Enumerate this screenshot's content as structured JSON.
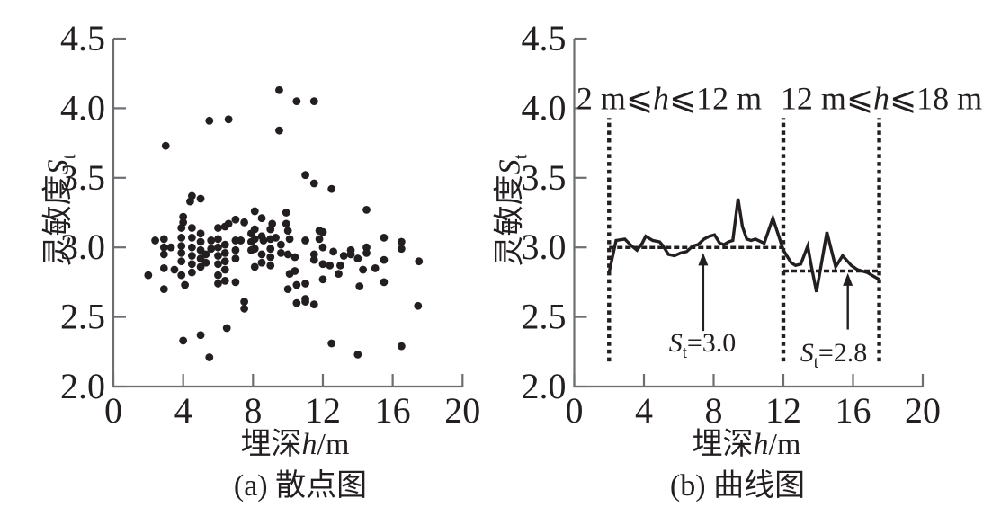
{
  "figure": {
    "background": "#ffffff",
    "ink": "#231f20",
    "axis_color": "#6d6e71"
  },
  "chart_data": [
    {
      "id": "scatter-panel",
      "type": "scatter",
      "title": "(a) 散点图",
      "xlabel": "埋深h/m",
      "ylabel": "灵敏度St",
      "xlabel_parts": [
        {
          "t": "埋深"
        },
        {
          "t": "h",
          "i": 1
        },
        {
          "t": "/m"
        }
      ],
      "ylabel_parts": [
        {
          "t": "灵敏度"
        },
        {
          "t": "S",
          "i": 1
        },
        {
          "t": "t",
          "sub": 1
        }
      ],
      "xlim": [
        0,
        20
      ],
      "ylim": [
        2.0,
        4.5
      ],
      "xticks": [
        0,
        4,
        8,
        12,
        16,
        20
      ],
      "yticks": [
        2.0,
        2.5,
        3.0,
        3.5,
        4.0,
        4.5
      ],
      "grid": false,
      "points": [
        [
          2.0,
          2.8
        ],
        [
          2.4,
          3.05
        ],
        [
          2.9,
          3.06
        ],
        [
          2.9,
          3.0
        ],
        [
          2.9,
          2.95
        ],
        [
          2.9,
          2.85
        ],
        [
          2.9,
          2.7
        ],
        [
          3.0,
          3.73
        ],
        [
          3.3,
          3.0
        ],
        [
          3.5,
          2.84
        ],
        [
          3.9,
          3.14
        ],
        [
          3.9,
          3.07
        ],
        [
          3.9,
          3.01
        ],
        [
          3.9,
          2.96
        ],
        [
          3.9,
          2.9
        ],
        [
          3.9,
          2.8
        ],
        [
          4.0,
          3.22
        ],
        [
          4.0,
          3.18
        ],
        [
          4.0,
          2.33
        ],
        [
          4.1,
          2.73
        ],
        [
          4.4,
          3.33
        ],
        [
          4.5,
          3.37
        ],
        [
          4.5,
          3.14
        ],
        [
          4.5,
          3.07
        ],
        [
          4.5,
          3.0
        ],
        [
          4.5,
          2.94
        ],
        [
          4.5,
          2.88
        ],
        [
          4.5,
          2.82
        ],
        [
          5.0,
          3.35
        ],
        [
          5.0,
          3.1
        ],
        [
          5.0,
          3.04
        ],
        [
          5.0,
          2.98
        ],
        [
          5.0,
          2.92
        ],
        [
          5.0,
          2.86
        ],
        [
          5.0,
          2.37
        ],
        [
          5.3,
          2.95
        ],
        [
          5.3,
          2.89
        ],
        [
          5.5,
          3.91
        ],
        [
          5.5,
          2.21
        ],
        [
          5.6,
          3.05
        ],
        [
          5.6,
          2.99
        ],
        [
          6.0,
          3.14
        ],
        [
          6.0,
          3.06
        ],
        [
          6.0,
          3.0
        ],
        [
          6.0,
          2.94
        ],
        [
          6.0,
          2.88
        ],
        [
          6.0,
          2.8
        ],
        [
          6.0,
          2.74
        ],
        [
          6.4,
          3.15
        ],
        [
          6.4,
          3.02
        ],
        [
          6.4,
          2.96
        ],
        [
          6.4,
          2.9
        ],
        [
          6.4,
          2.84
        ],
        [
          6.4,
          2.76
        ],
        [
          6.5,
          2.42
        ],
        [
          6.6,
          3.92
        ],
        [
          6.6,
          3.17
        ],
        [
          7.0,
          3.2
        ],
        [
          7.0,
          3.05
        ],
        [
          7.0,
          2.98
        ],
        [
          7.0,
          2.92
        ],
        [
          7.0,
          2.75
        ],
        [
          7.3,
          3.05
        ],
        [
          7.5,
          3.18
        ],
        [
          7.5,
          2.61
        ],
        [
          7.5,
          2.56
        ],
        [
          7.9,
          3.1
        ],
        [
          7.9,
          3.04
        ],
        [
          7.9,
          2.98
        ],
        [
          8.1,
          3.26
        ],
        [
          8.1,
          3.13
        ],
        [
          8.1,
          3.06
        ],
        [
          8.1,
          2.99
        ],
        [
          8.1,
          2.86
        ],
        [
          8.5,
          3.21
        ],
        [
          8.5,
          3.08
        ],
        [
          8.5,
          2.95
        ],
        [
          8.5,
          2.89
        ],
        [
          8.6,
          3.05
        ],
        [
          9.0,
          3.13
        ],
        [
          9.0,
          3.06
        ],
        [
          9.0,
          2.99
        ],
        [
          9.0,
          2.93
        ],
        [
          9.0,
          2.87
        ],
        [
          9.1,
          3.17
        ],
        [
          9.3,
          3.07
        ],
        [
          9.5,
          4.13
        ],
        [
          9.5,
          3.84
        ],
        [
          9.6,
          3.02
        ],
        [
          9.6,
          2.96
        ],
        [
          9.9,
          3.25
        ],
        [
          9.9,
          3.17
        ],
        [
          10.0,
          3.12
        ],
        [
          10.0,
          2.95
        ],
        [
          10.0,
          2.7
        ],
        [
          10.1,
          3.06
        ],
        [
          10.1,
          2.81
        ],
        [
          10.4,
          2.93
        ],
        [
          10.4,
          2.83
        ],
        [
          10.5,
          4.05
        ],
        [
          10.5,
          2.73
        ],
        [
          10.5,
          2.6
        ],
        [
          11.0,
          3.52
        ],
        [
          11.0,
          3.05
        ],
        [
          11.0,
          2.74
        ],
        [
          11.0,
          2.63
        ],
        [
          11.0,
          2.61
        ],
        [
          11.5,
          4.05
        ],
        [
          11.5,
          3.46
        ],
        [
          11.5,
          2.95
        ],
        [
          11.5,
          2.91
        ],
        [
          11.5,
          2.59
        ],
        [
          11.8,
          3.12
        ],
        [
          11.8,
          3.06
        ],
        [
          12.0,
          3.11
        ],
        [
          12.0,
          3.0
        ],
        [
          12.0,
          2.88
        ],
        [
          12.0,
          2.77
        ],
        [
          12.4,
          2.87
        ],
        [
          12.5,
          3.42
        ],
        [
          12.5,
          2.31
        ],
        [
          12.6,
          2.97
        ],
        [
          12.9,
          2.81
        ],
        [
          13.0,
          2.87
        ],
        [
          13.2,
          2.94
        ],
        [
          13.6,
          2.98
        ],
        [
          13.6,
          2.95
        ],
        [
          14.0,
          2.92
        ],
        [
          14.0,
          2.23
        ],
        [
          14.1,
          2.72
        ],
        [
          14.3,
          2.84
        ],
        [
          14.5,
          3.27
        ],
        [
          14.5,
          3.0
        ],
        [
          14.5,
          2.96
        ],
        [
          15.0,
          2.85
        ],
        [
          15.5,
          3.07
        ],
        [
          15.5,
          2.91
        ],
        [
          15.5,
          2.75
        ],
        [
          16.5,
          3.04
        ],
        [
          16.5,
          2.99
        ],
        [
          16.5,
          2.29
        ],
        [
          17.5,
          2.9
        ],
        [
          17.45,
          2.58
        ]
      ]
    },
    {
      "id": "line-panel",
      "type": "line",
      "title": "(b) 曲线图",
      "xlabel": "埋深h/m",
      "ylabel": "灵敏度St",
      "xlabel_parts": [
        {
          "t": "埋深"
        },
        {
          "t": "h",
          "i": 1
        },
        {
          "t": "/m"
        }
      ],
      "ylabel_parts": [
        {
          "t": "灵敏度"
        },
        {
          "t": "S",
          "i": 1
        },
        {
          "t": "t",
          "sub": 1
        }
      ],
      "xlim": [
        0,
        20
      ],
      "ylim": [
        2.0,
        4.5
      ],
      "xticks": [
        0,
        4,
        8,
        12,
        16,
        20
      ],
      "yticks": [
        2.0,
        2.5,
        3.0,
        3.5,
        4.0,
        4.5
      ],
      "grid": false,
      "line_points": [
        [
          2.0,
          2.82
        ],
        [
          2.4,
          3.05
        ],
        [
          2.9,
          3.06
        ],
        [
          3.3,
          3.01
        ],
        [
          3.6,
          2.98
        ],
        [
          3.9,
          3.03
        ],
        [
          4.1,
          3.08
        ],
        [
          4.5,
          3.05
        ],
        [
          4.9,
          3.04
        ],
        [
          5.1,
          3.01
        ],
        [
          5.4,
          2.95
        ],
        [
          5.75,
          2.94
        ],
        [
          6.1,
          2.96
        ],
        [
          6.45,
          2.97
        ],
        [
          6.8,
          3.01
        ],
        [
          7.1,
          3.02
        ],
        [
          7.45,
          3.06
        ],
        [
          7.75,
          3.08
        ],
        [
          8.05,
          3.09
        ],
        [
          8.35,
          3.03
        ],
        [
          8.6,
          3.02
        ],
        [
          8.85,
          3.04
        ],
        [
          9.1,
          3.05
        ],
        [
          9.4,
          3.35
        ],
        [
          9.65,
          3.15
        ],
        [
          9.9,
          3.06
        ],
        [
          10.15,
          3.05
        ],
        [
          10.4,
          3.06
        ],
        [
          10.9,
          3.03
        ],
        [
          11.4,
          3.21
        ],
        [
          12.0,
          2.98
        ],
        [
          12.45,
          2.89
        ],
        [
          12.7,
          2.87
        ],
        [
          13.0,
          2.88
        ],
        [
          13.4,
          3.01
        ],
        [
          13.6,
          2.87
        ],
        [
          13.9,
          2.68
        ],
        [
          14.5,
          3.11
        ],
        [
          15.0,
          2.86
        ],
        [
          15.4,
          2.94
        ],
        [
          15.9,
          2.87
        ],
        [
          16.25,
          2.84
        ],
        [
          16.8,
          2.82
        ],
        [
          17.35,
          2.78
        ],
        [
          17.5,
          2.77
        ]
      ],
      "segments": [
        {
          "label": "2 m⩽h⩽12 m",
          "label_parts": [
            {
              "t": "2 m"
            },
            {
              "t": "⩽",
              "leq": 1
            },
            {
              "t": "h",
              "i": 1
            },
            {
              "t": "⩽",
              "leq": 1
            },
            {
              "t": "12 m"
            }
          ],
          "h_range": [
            2,
            12
          ],
          "mean_value": 3.0,
          "mean_line_v": 3.0,
          "mean_label": "St=3.0",
          "mean_label_parts": [
            {
              "t": "S",
              "i": 1
            },
            {
              "t": "t",
              "sub": 1
            },
            {
              "t": "=3.0"
            }
          ],
          "arrow": {
            "x": 7.4,
            "from_v": 2.4,
            "to_v": 2.96
          }
        },
        {
          "label": "12 m⩽h⩽18 m",
          "label_parts": [
            {
              "t": "12 m"
            },
            {
              "t": "⩽",
              "leq": 1
            },
            {
              "t": "h",
              "i": 1
            },
            {
              "t": "⩽",
              "leq": 1
            },
            {
              "t": "18 m"
            }
          ],
          "h_range": [
            12,
            17.5
          ],
          "mean_value": 2.8,
          "mean_line_v": 2.83,
          "mean_label": "St=2.8",
          "mean_label_parts": [
            {
              "t": "S",
              "i": 1
            },
            {
              "t": "t",
              "sub": 1
            },
            {
              "t": "=2.8"
            }
          ],
          "arrow": {
            "x": 15.7,
            "from_v": 2.41,
            "to_v": 2.815
          }
        }
      ],
      "boundary_lines_h": [
        2,
        12,
        17.5
      ],
      "boundary_v_range": [
        2.18,
        3.93
      ]
    }
  ]
}
